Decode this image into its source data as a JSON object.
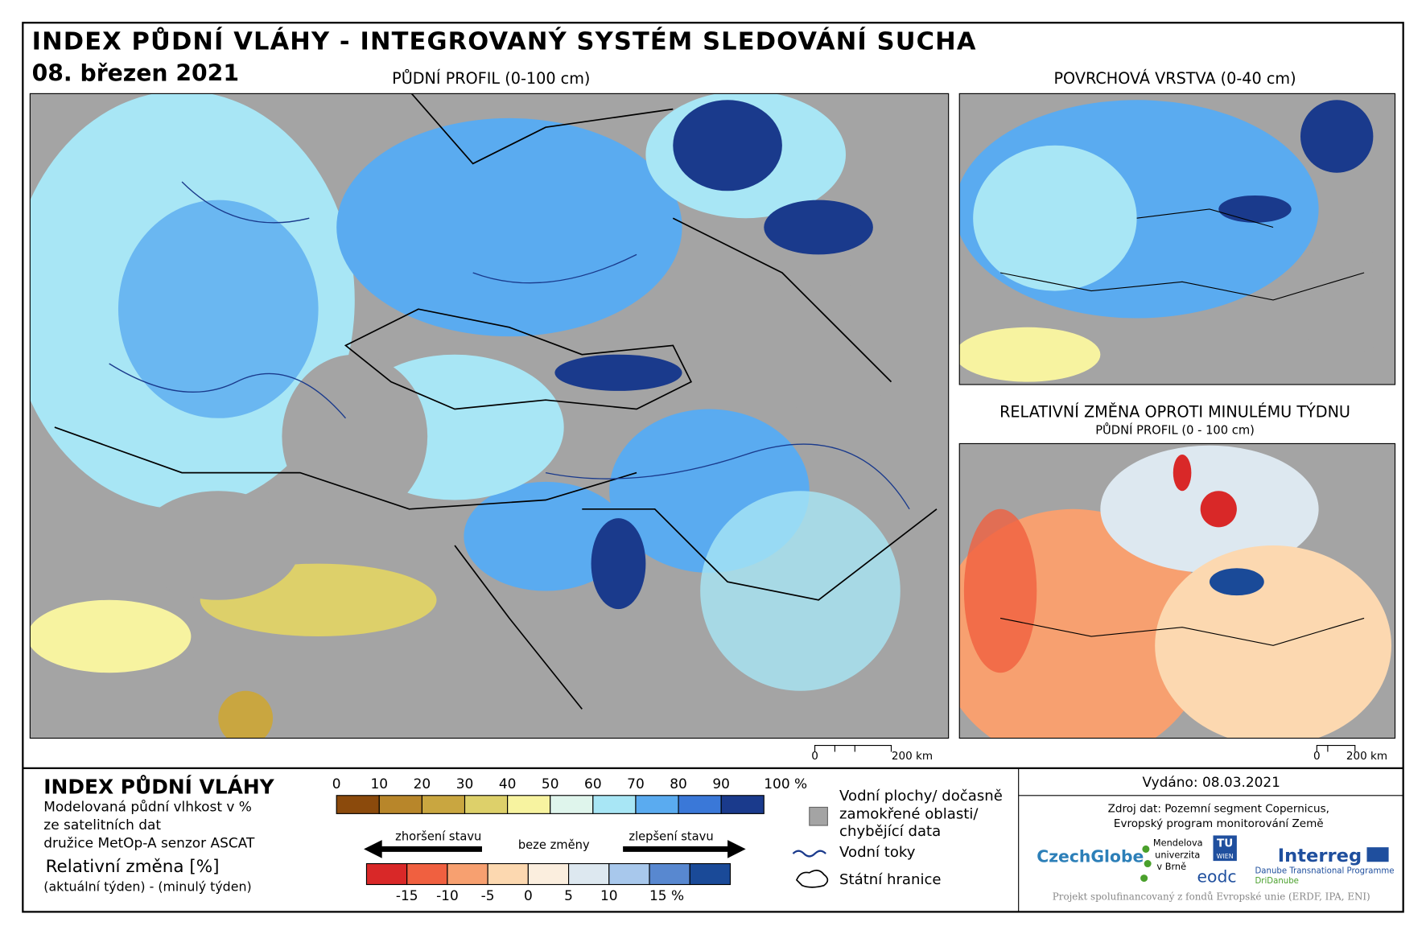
{
  "header": {
    "title": "INDEX PŮDNÍ VLÁHY - INTEGROVANÝ SYSTÉM SLEDOVÁNÍ SUCHA",
    "date": "08. březen 2021"
  },
  "panels": [
    {
      "title": "PŮDNÍ PROFIL (0-100 cm)",
      "scale": [
        "0",
        "200 km"
      ]
    },
    {
      "title": "POVRCHOVÁ VRSTVA (0-40 cm)"
    },
    {
      "title": "RELATIVNÍ ZMĚNA OPROTI MINULÉMU TÝDNU",
      "subtitle": "PŮDNÍ PROFIL (0 - 100 cm)",
      "scale": [
        "0",
        "200 km"
      ]
    }
  ],
  "legend": {
    "title": "INDEX PŮDNÍ VLÁHY",
    "description": [
      "Modelovaná půdní vlhkost v %",
      "ze satelitních dat",
      "družice MetOp-A senzor ASCAT"
    ],
    "change_title": "Relativní změna [%]",
    "change_description": "(aktuální týden) - (minulý týden)",
    "moisture_scale": {
      "labels": [
        "0",
        "10",
        "20",
        "30",
        "40",
        "50",
        "60",
        "70",
        "80",
        "90",
        "100 %"
      ],
      "colors": [
        "#8b4a0c",
        "#b8862a",
        "#c9a640",
        "#ddd06a",
        "#f7f3a0",
        "#dff5ec",
        "#a8e6f5",
        "#5aabf0",
        "#3a78d8",
        "#1a3a8c"
      ]
    },
    "change_scale": {
      "labels": [
        "-15",
        "-10",
        "-5",
        "0",
        "5",
        "10",
        "15 %"
      ],
      "colors": [
        "#d92828",
        "#f06040",
        "#f7a070",
        "#fcd8b0",
        "#fbeede",
        "#dde8f0",
        "#a8c8ec",
        "#5888d0",
        "#1a4a98"
      ],
      "worse": "zhoršení stavu",
      "same": "beze změny",
      "better": "zlepšení stavu"
    },
    "items": [
      "Vodní plochy/ dočasně",
      "zamokřené oblasti/",
      "chybějící data",
      "Vodní toky",
      "Státní hranice"
    ]
  },
  "footer": {
    "issued": "Vydáno: 08.03.2021",
    "source": [
      "Zdroj dat: Pozemní segment Copernicus,",
      "Evropský program monitorování Země"
    ],
    "logos": [
      "CzechGlobe",
      "Mendelova",
      "univerzita",
      "v Brně",
      "TU",
      "WIEN",
      "eodc",
      "Interreg",
      "Danube Transnational Programme",
      "DriDanube"
    ],
    "note": "Projekt spolufinancovaný z fondů Evropské unie (ERDF, IPA, ENI)"
  }
}
